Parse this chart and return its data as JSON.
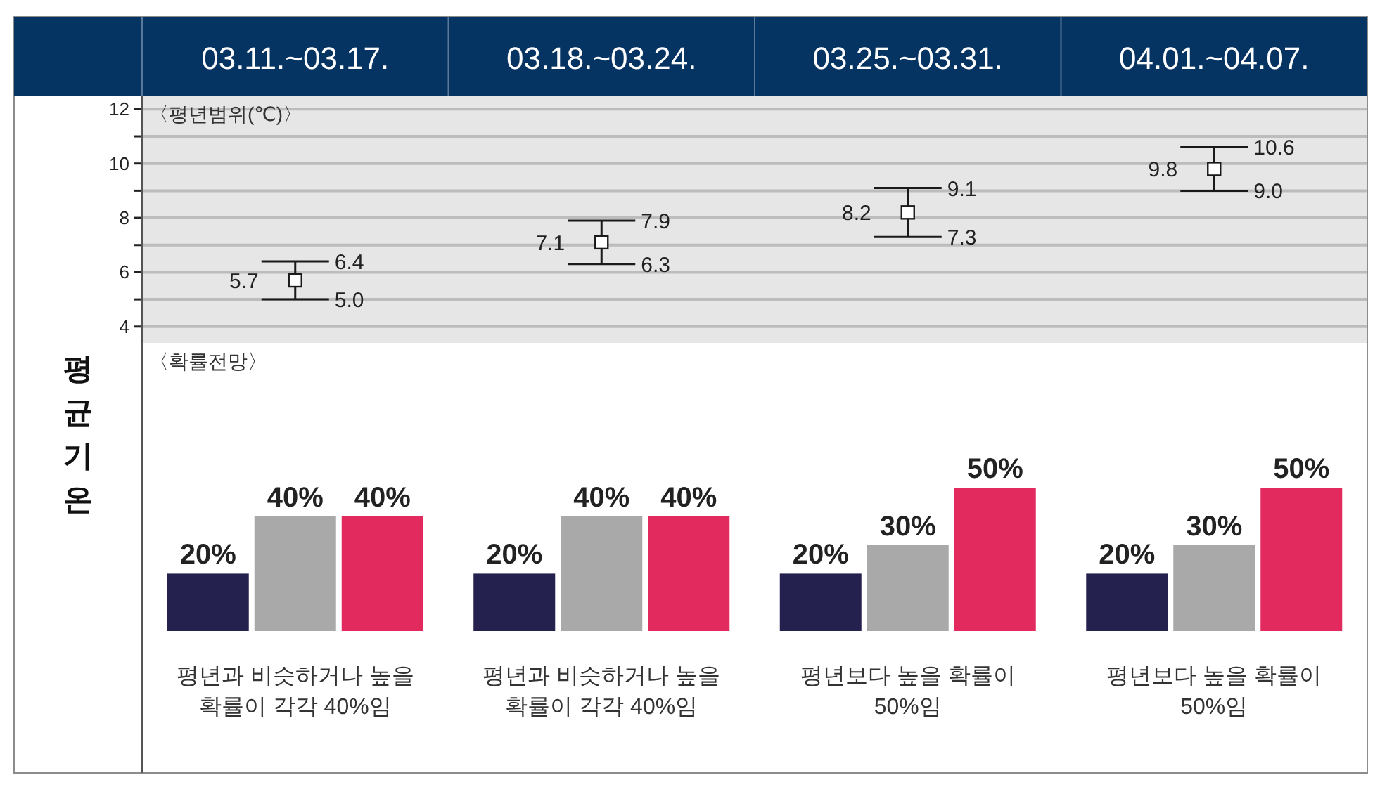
{
  "chart_data": [
    {
      "type": "scatter",
      "ylabel": "평균기온",
      "categories": [
        "03.11.~03.17.",
        "03.18.~03.24.",
        "03.25.~03.31.",
        "04.01.~04.07."
      ],
      "values": [
        5.7,
        7.1,
        8.2,
        9.8
      ],
      "errors": [
        [
          5.0,
          6.4
        ],
        [
          6.3,
          7.9
        ],
        [
          7.3,
          9.1
        ],
        [
          9.0,
          10.6
        ]
      ],
      "color": "#1a1a1a",
      "marker": "square",
      "data_labels": true,
      "ylim": [
        3.4,
        12.5
      ],
      "yticks": [
        4,
        {
          "value": 5,
          "label": null
        },
        6,
        {
          "value": 7,
          "label": null
        },
        8,
        {
          "value": 9,
          "label": null
        },
        10,
        {
          "value": 11,
          "label": null
        },
        12
      ],
      "grid": "y",
      "annotations": [
        "〈평년범위(℃)〉",
        {
          "text": "6.4",
          "x": "03.11.~03.17.",
          "y": 6.4
        },
        {
          "text": "5.0",
          "x": "03.11.~03.17.",
          "y": 5.0
        },
        {
          "text": "7.9",
          "x": "03.18.~03.24.",
          "y": 7.9
        },
        {
          "text": "6.3",
          "x": "03.18.~03.24.",
          "y": 6.3
        },
        {
          "text": "9.1",
          "x": "03.25.~03.31.",
          "y": 9.1
        },
        {
          "text": "7.3",
          "x": "03.25.~03.31.",
          "y": 7.3
        },
        {
          "text": "10.6",
          "x": "04.01.~04.07.",
          "y": 10.6
        },
        {
          "text": "9.0",
          "x": "04.01.~04.07.",
          "y": 9.0
        }
      ]
    },
    {
      "type": "bar",
      "categories": [
        "평년과 비슷하거나 높을\n확률이 각각 40%임",
        "평년과 비슷하거나 높을\n확률이 각각 40%임",
        "평년보다 높을 확률이\n50%임",
        "평년보다 높을 확률이\n50%임"
      ],
      "series": [
        {
          "color": "#24214f",
          "values": [
            20,
            20,
            20,
            20
          ],
          "value_labels": [
            "20%",
            "20%",
            "20%",
            "20%"
          ]
        },
        {
          "color": "#a9a9a9",
          "values": [
            40,
            40,
            30,
            30
          ],
          "value_labels": [
            "40%",
            "40%",
            "30%",
            "30%"
          ]
        },
        {
          "color": "#e22a5e",
          "values": [
            40,
            40,
            50,
            50
          ],
          "value_labels": [
            "40%",
            "40%",
            "50%",
            "50%"
          ]
        }
      ],
      "tick_labels": "x",
      "annotations": [
        "〈확률전망〉"
      ]
    }
  ]
}
